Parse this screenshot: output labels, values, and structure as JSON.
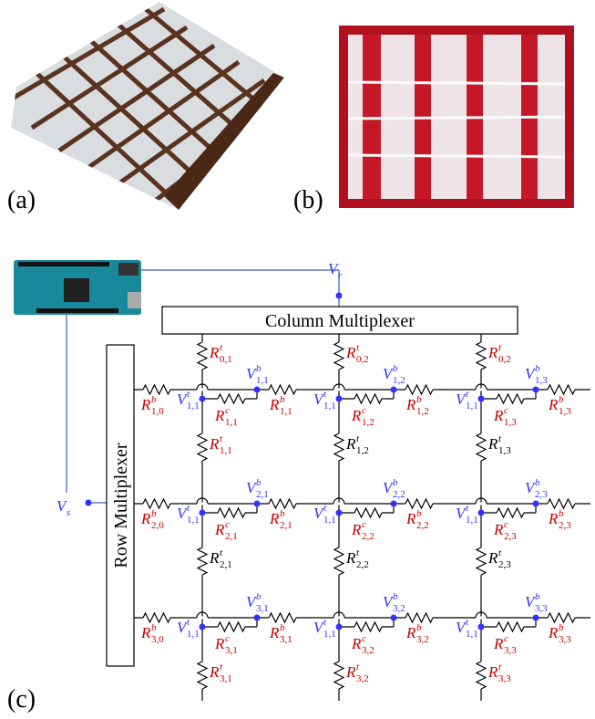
{
  "photos": {
    "a_label": "(a)",
    "b_label": "(b)"
  },
  "panel_c": {
    "label": "(c)",
    "column_mux": "Column Multiplexer",
    "row_mux": "Row Multiplexer",
    "vr": {
      "base": "V",
      "sub": "r",
      "color": "#3333ff"
    },
    "vs": {
      "base": "V",
      "sub": "s",
      "color": "#3333ff"
    },
    "columns": [
      {
        "resistors": [
          {
            "base": "R",
            "sup": "t",
            "sub": "0,1",
            "color": "#cc0000"
          },
          {
            "base": "R",
            "sup": "t",
            "sub": "1,1",
            "color": "#cc0000"
          },
          {
            "base": "R",
            "sup": "t",
            "sub": "2,1",
            "color": "#000000"
          },
          {
            "base": "R",
            "sup": "t",
            "sub": "3,1",
            "color": "#cc0000"
          }
        ]
      },
      {
        "resistors": [
          {
            "base": "R",
            "sup": "t",
            "sub": "0,2",
            "color": "#cc0000"
          },
          {
            "base": "R",
            "sup": "t",
            "sub": "1,2",
            "color": "#000000"
          },
          {
            "base": "R",
            "sup": "t",
            "sub": "2,2",
            "color": "#000000"
          },
          {
            "base": "R",
            "sup": "t",
            "sub": "3,2",
            "color": "#cc0000"
          }
        ]
      },
      {
        "resistors": [
          {
            "base": "R",
            "sup": "t",
            "sub": "0,2",
            "color": "#cc0000"
          },
          {
            "base": "R",
            "sup": "t",
            "sub": "1,3",
            "color": "#000000"
          },
          {
            "base": "R",
            "sup": "t",
            "sub": "2,3",
            "color": "#000000"
          },
          {
            "base": "R",
            "sup": "t",
            "sub": "3,3",
            "color": "#cc0000"
          }
        ]
      }
    ],
    "rows": [
      {
        "left": {
          "base": "R",
          "sup": "b",
          "sub": "1,0",
          "color": "#cc0000"
        },
        "cells": [
          {
            "vt": {
              "base": "V",
              "sup": "t",
              "sub": "1,1",
              "color": "#3333ff"
            },
            "rc": {
              "base": "R",
              "sup": "c",
              "sub": "1,1",
              "color": "#cc0000"
            },
            "vb": {
              "base": "V",
              "sup": "b",
              "sub": "1,1",
              "color": "#3333ff"
            },
            "rb": {
              "base": "R",
              "sup": "b",
              "sub": "1,1",
              "color": "#cc0000"
            }
          },
          {
            "vt": {
              "base": "V",
              "sup": "t",
              "sub": "1,1",
              "color": "#3333ff"
            },
            "rc": {
              "base": "R",
              "sup": "c",
              "sub": "1,2",
              "color": "#cc0000"
            },
            "vb": {
              "base": "V",
              "sup": "b",
              "sub": "1,2",
              "color": "#3333ff"
            },
            "rb": {
              "base": "R",
              "sup": "b",
              "sub": "1,2",
              "color": "#cc0000"
            }
          },
          {
            "vt": {
              "base": "V",
              "sup": "t",
              "sub": "1,1",
              "color": "#3333ff"
            },
            "rc": {
              "base": "R",
              "sup": "c",
              "sub": "1,3",
              "color": "#cc0000"
            },
            "vb": {
              "base": "V",
              "sup": "b",
              "sub": "1,3",
              "color": "#3333ff"
            },
            "rb": {
              "base": "R",
              "sup": "b",
              "sub": "1,3",
              "color": "#cc0000"
            }
          }
        ]
      },
      {
        "left": {
          "base": "R",
          "sup": "b",
          "sub": "2,0",
          "color": "#cc0000"
        },
        "cells": [
          {
            "vt": {
              "base": "V",
              "sup": "t",
              "sub": "1,1",
              "color": "#3333ff"
            },
            "rc": {
              "base": "R",
              "sup": "c",
              "sub": "2,1",
              "color": "#cc0000"
            },
            "vb": {
              "base": "V",
              "sup": "b",
              "sub": "2,1",
              "color": "#3333ff"
            },
            "rb": {
              "base": "R",
              "sup": "b",
              "sub": "2,1",
              "color": "#cc0000"
            }
          },
          {
            "vt": {
              "base": "V",
              "sup": "t",
              "sub": "1,1",
              "color": "#3333ff"
            },
            "rc": {
              "base": "R",
              "sup": "c",
              "sub": "2,2",
              "color": "#cc0000"
            },
            "vb": {
              "base": "V",
              "sup": "b",
              "sub": "2,2",
              "color": "#3333ff"
            },
            "rb": {
              "base": "R",
              "sup": "b",
              "sub": "2,2",
              "color": "#cc0000"
            }
          },
          {
            "vt": {
              "base": "V",
              "sup": "t",
              "sub": "1,1",
              "color": "#3333ff"
            },
            "rc": {
              "base": "R",
              "sup": "c",
              "sub": "2,3",
              "color": "#cc0000"
            },
            "vb": {
              "base": "V",
              "sup": "b",
              "sub": "2,3",
              "color": "#3333ff"
            },
            "rb": {
              "base": "R",
              "sup": "b",
              "sub": "2,3",
              "color": "#cc0000"
            }
          }
        ]
      },
      {
        "left": {
          "base": "R",
          "sup": "b",
          "sub": "3,0",
          "color": "#cc0000"
        },
        "cells": [
          {
            "vt": {
              "base": "V",
              "sup": "t",
              "sub": "1,1",
              "color": "#3333ff"
            },
            "rc": {
              "base": "R",
              "sup": "c",
              "sub": "3,1",
              "color": "#cc0000"
            },
            "vb": {
              "base": "V",
              "sup": "b",
              "sub": "3,1",
              "color": "#3333ff"
            },
            "rb": {
              "base": "R",
              "sup": "b",
              "sub": "3,1",
              "color": "#cc0000"
            }
          },
          {
            "vt": {
              "base": "V",
              "sup": "t",
              "sub": "1,1",
              "color": "#3333ff"
            },
            "rc": {
              "base": "R",
              "sup": "c",
              "sub": "3,2",
              "color": "#cc0000"
            },
            "vb": {
              "base": "V",
              "sup": "b",
              "sub": "3,2",
              "color": "#3333ff"
            },
            "rb": {
              "base": "R",
              "sup": "b",
              "sub": "3,2",
              "color": "#cc0000"
            }
          },
          {
            "vt": {
              "base": "V",
              "sup": "t",
              "sub": "1,1",
              "color": "#3333ff"
            },
            "rc": {
              "base": "R",
              "sup": "c",
              "sub": "3,3",
              "color": "#cc0000"
            },
            "vb": {
              "base": "V",
              "sup": "b",
              "sub": "3,3",
              "color": "#3333ff"
            },
            "rb": {
              "base": "R",
              "sup": "b",
              "sub": "3,3",
              "color": "#cc0000"
            }
          }
        ]
      }
    ]
  }
}
